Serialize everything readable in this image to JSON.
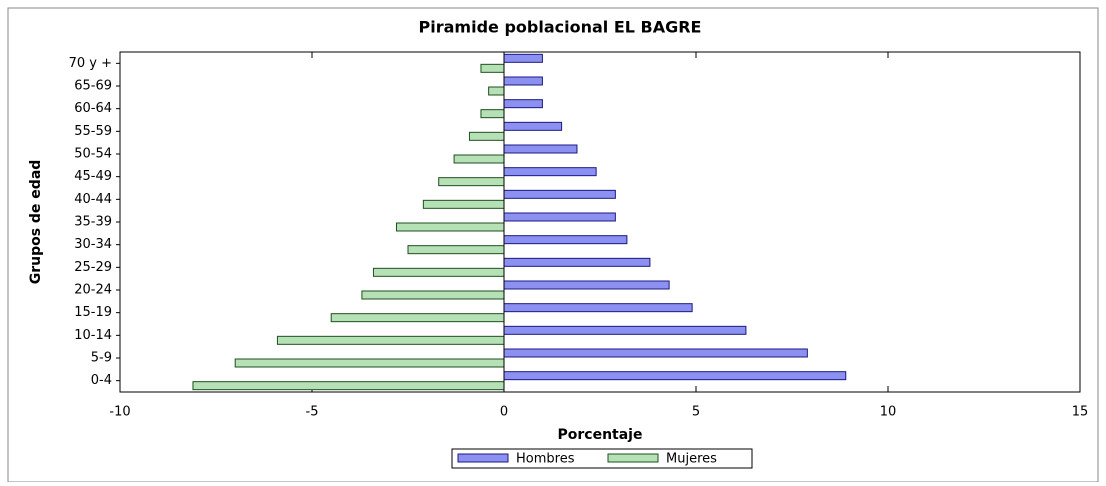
{
  "chart_data": {
    "type": "bar",
    "orientation": "horizontal",
    "title": "Piramide poblacional EL BAGRE",
    "x_label": "Porcentaje",
    "y_label": "Grupos de edad",
    "categories": [
      "0-4",
      "5-9",
      "10-14",
      "15-19",
      "20-24",
      "25-29",
      "30-34",
      "35-39",
      "40-44",
      "45-49",
      "50-54",
      "55-59",
      "60-64",
      "65-69",
      "70 y +"
    ],
    "series": [
      {
        "name": "Hombres",
        "color": "#8c90f0",
        "values": [
          8.9,
          7.9,
          6.3,
          4.9,
          4.3,
          3.8,
          3.2,
          2.9,
          2.9,
          2.4,
          1.9,
          1.5,
          1.0,
          1.0,
          1.0
        ]
      },
      {
        "name": "Mujeres",
        "color": "#b6e0b6",
        "values": [
          -8.1,
          -7.0,
          -5.9,
          -4.5,
          -3.7,
          -3.4,
          -2.5,
          -2.8,
          -2.1,
          -1.7,
          -1.3,
          -0.9,
          -0.6,
          -0.4,
          -0.6
        ]
      }
    ],
    "xlim": [
      -10,
      15
    ],
    "xticks": [
      -10,
      -5,
      0,
      5,
      10,
      15
    ],
    "legend": "bottom"
  }
}
